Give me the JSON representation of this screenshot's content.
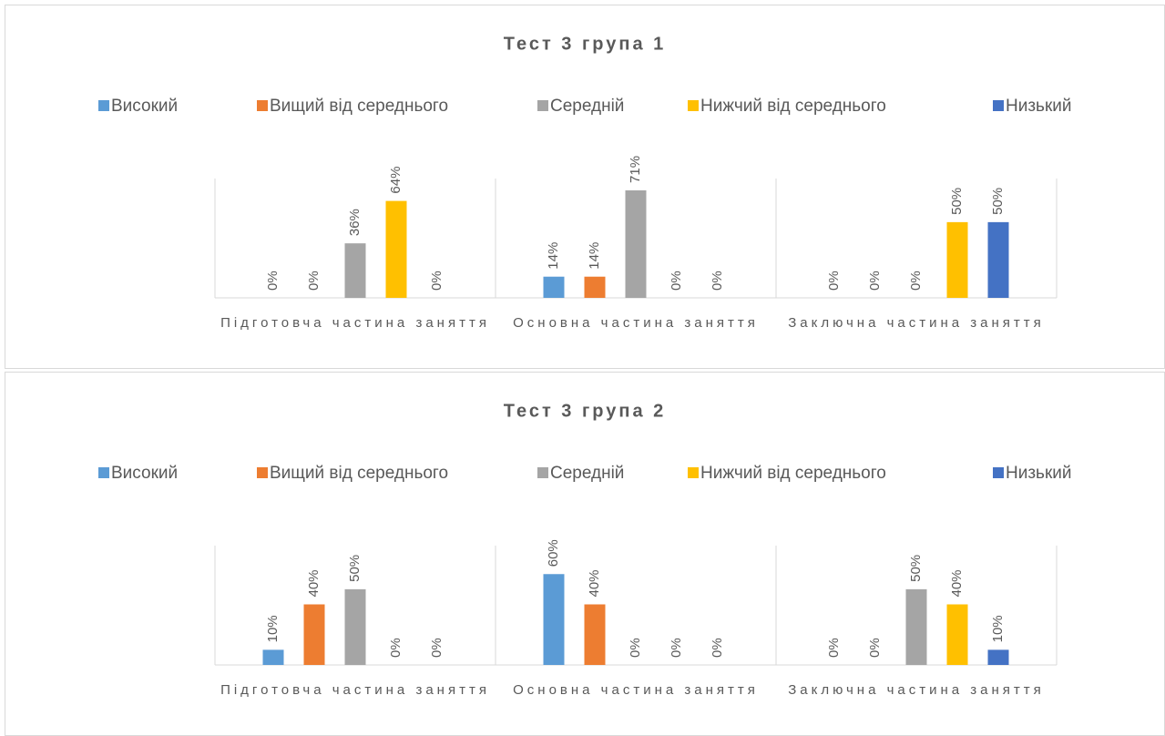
{
  "chart_data": [
    {
      "type": "bar",
      "title": "Тест 3 група 1",
      "categories": [
        "Підготовча частина заняття",
        "Основна частина заняття",
        "Заключна частина заняття"
      ],
      "ylim": [
        0,
        80
      ],
      "series": [
        {
          "name": "Високий",
          "color": "#5b9bd5",
          "values": [
            0,
            14,
            0
          ],
          "value_labels": [
            "0%",
            "14%",
            "0%"
          ]
        },
        {
          "name": "Вищий від середнього",
          "color": "#ed7d31",
          "values": [
            0,
            14,
            0
          ],
          "value_labels": [
            "0%",
            "14%",
            "0%"
          ]
        },
        {
          "name": "Середній",
          "color": "#a5a5a5",
          "values": [
            36,
            71,
            0
          ],
          "value_labels": [
            "36%",
            "71%",
            "0%"
          ]
        },
        {
          "name": "Нижчий від середнього",
          "color": "#ffc000",
          "values": [
            64,
            0,
            50
          ],
          "value_labels": [
            "64%",
            "0%",
            "50%"
          ]
        },
        {
          "name": "Низький",
          "color": "#4472c4",
          "values": [
            0,
            0,
            50
          ],
          "value_labels": [
            "0%",
            "0%",
            "50%"
          ]
        }
      ]
    },
    {
      "type": "bar",
      "title": "Тест 3 група 2",
      "categories": [
        "Підготовча частина заняття",
        "Основна частина заняття",
        "Заключна частина заняття"
      ],
      "ylim": [
        0,
        80
      ],
      "series": [
        {
          "name": "Високий",
          "color": "#5b9bd5",
          "values": [
            10,
            60,
            0
          ],
          "value_labels": [
            "10%",
            "60%",
            "0%"
          ]
        },
        {
          "name": "Вищий від середнього",
          "color": "#ed7d31",
          "values": [
            40,
            40,
            0
          ],
          "value_labels": [
            "40%",
            "40%",
            "0%"
          ]
        },
        {
          "name": "Середній",
          "color": "#a5a5a5",
          "values": [
            50,
            0,
            50
          ],
          "value_labels": [
            "50%",
            "0%",
            "50%"
          ]
        },
        {
          "name": "Нижчий від середнього",
          "color": "#ffc000",
          "values": [
            0,
            0,
            40
          ],
          "value_labels": [
            "0%",
            "0%",
            "40%"
          ]
        },
        {
          "name": "Низький",
          "color": "#4472c4",
          "values": [
            0,
            0,
            10
          ],
          "value_labels": [
            "0%",
            "0%",
            "10%"
          ]
        }
      ]
    }
  ]
}
